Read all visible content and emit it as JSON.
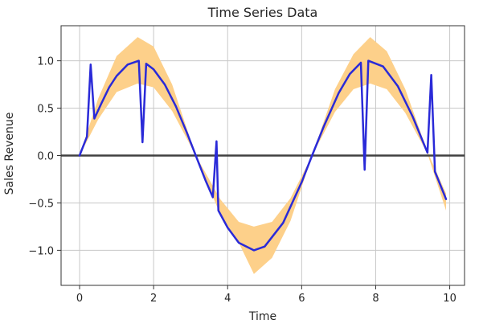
{
  "chart_data": {
    "type": "line",
    "title": "Time Series Data",
    "xlabel": "Time",
    "ylabel": "Sales Revenue",
    "xlim": [
      -0.5,
      10.4
    ],
    "ylim": [
      -1.37,
      1.37
    ],
    "xticks": [
      0,
      2,
      4,
      6,
      8,
      10
    ],
    "xtick_labels": [
      "0",
      "2",
      "4",
      "6",
      "8",
      "10"
    ],
    "yticks": [
      -1.0,
      -0.5,
      0.0,
      0.5,
      1.0
    ],
    "ytick_labels": [
      "−1.0",
      "−0.5",
      "0.0",
      "0.5",
      "1.0"
    ],
    "grid": true,
    "reference_line": {
      "y": 0.0,
      "color": "#404040"
    },
    "band": {
      "color": "#fdd08a",
      "x": [
        0.0,
        0.5,
        1.0,
        1.57,
        2.0,
        2.5,
        3.14,
        3.8,
        4.3,
        4.71,
        5.2,
        5.7,
        6.28,
        6.9,
        7.4,
        7.85,
        8.3,
        8.8,
        9.4,
        9.9
      ],
      "lower": [
        0.0,
        0.38,
        0.67,
        0.76,
        0.72,
        0.47,
        0.0,
        -0.62,
        -0.92,
        -1.25,
        -1.08,
        -0.69,
        0.0,
        0.46,
        0.7,
        0.76,
        0.7,
        0.45,
        0.02,
        -0.58
      ],
      "upper": [
        0.0,
        0.6,
        1.05,
        1.25,
        1.15,
        0.75,
        0.0,
        -0.46,
        -0.7,
        -0.75,
        -0.7,
        -0.45,
        0.0,
        0.7,
        1.07,
        1.25,
        1.1,
        0.7,
        0.04,
        -0.4
      ]
    },
    "series": [
      {
        "color": "#2a2ad8",
        "x": [
          0.0,
          0.2,
          0.3,
          0.4,
          0.6,
          0.8,
          1.0,
          1.3,
          1.6,
          1.7,
          1.8,
          2.0,
          2.3,
          2.6,
          2.9,
          3.14,
          3.4,
          3.6,
          3.7,
          3.75,
          4.0,
          4.3,
          4.71,
          5.0,
          5.5,
          6.0,
          6.28,
          6.6,
          7.0,
          7.3,
          7.6,
          7.7,
          7.8,
          8.2,
          8.6,
          9.0,
          9.4,
          9.5,
          9.6,
          9.9
        ],
        "y": [
          0.0,
          0.2,
          0.96,
          0.39,
          0.56,
          0.72,
          0.84,
          0.96,
          1.0,
          0.14,
          0.97,
          0.91,
          0.75,
          0.52,
          0.24,
          0.0,
          -0.26,
          -0.44,
          0.15,
          -0.58,
          -0.76,
          -0.92,
          -1.0,
          -0.96,
          -0.71,
          -0.28,
          0.0,
          0.31,
          0.66,
          0.86,
          0.98,
          -0.15,
          1.0,
          0.94,
          0.73,
          0.41,
          0.03,
          0.85,
          -0.17,
          -0.46
        ]
      }
    ]
  }
}
